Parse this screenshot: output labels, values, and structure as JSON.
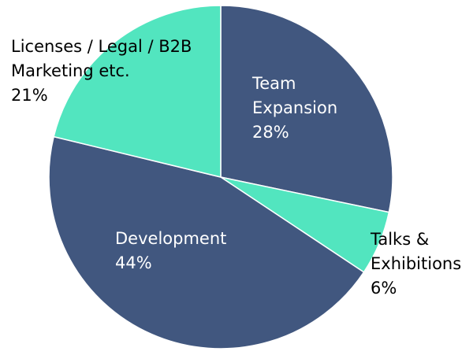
{
  "chart_data": {
    "type": "pie",
    "start_angle_deg": 0,
    "direction": "clockwise",
    "slices": [
      {
        "lines": [
          "Team",
          "Expansion"
        ],
        "percent_label": "28%",
        "value": 28,
        "color": "#41577f",
        "label_color": "#ffffff"
      },
      {
        "lines": [
          "Talks &",
          "Exhibitions"
        ],
        "percent_label": "6%",
        "value": 6,
        "color": "#52e5bf",
        "label_color": "#000000"
      },
      {
        "lines": [
          "Development"
        ],
        "percent_label": "44%",
        "value": 44,
        "color": "#41577f",
        "label_color": "#ffffff"
      },
      {
        "lines": [
          "Licenses / Legal / B2B",
          "Marketing etc."
        ],
        "percent_label": "21%",
        "value": 21,
        "color": "#52e5bf",
        "label_color": "#000000"
      }
    ],
    "slice_border_color": "#ffffff"
  }
}
